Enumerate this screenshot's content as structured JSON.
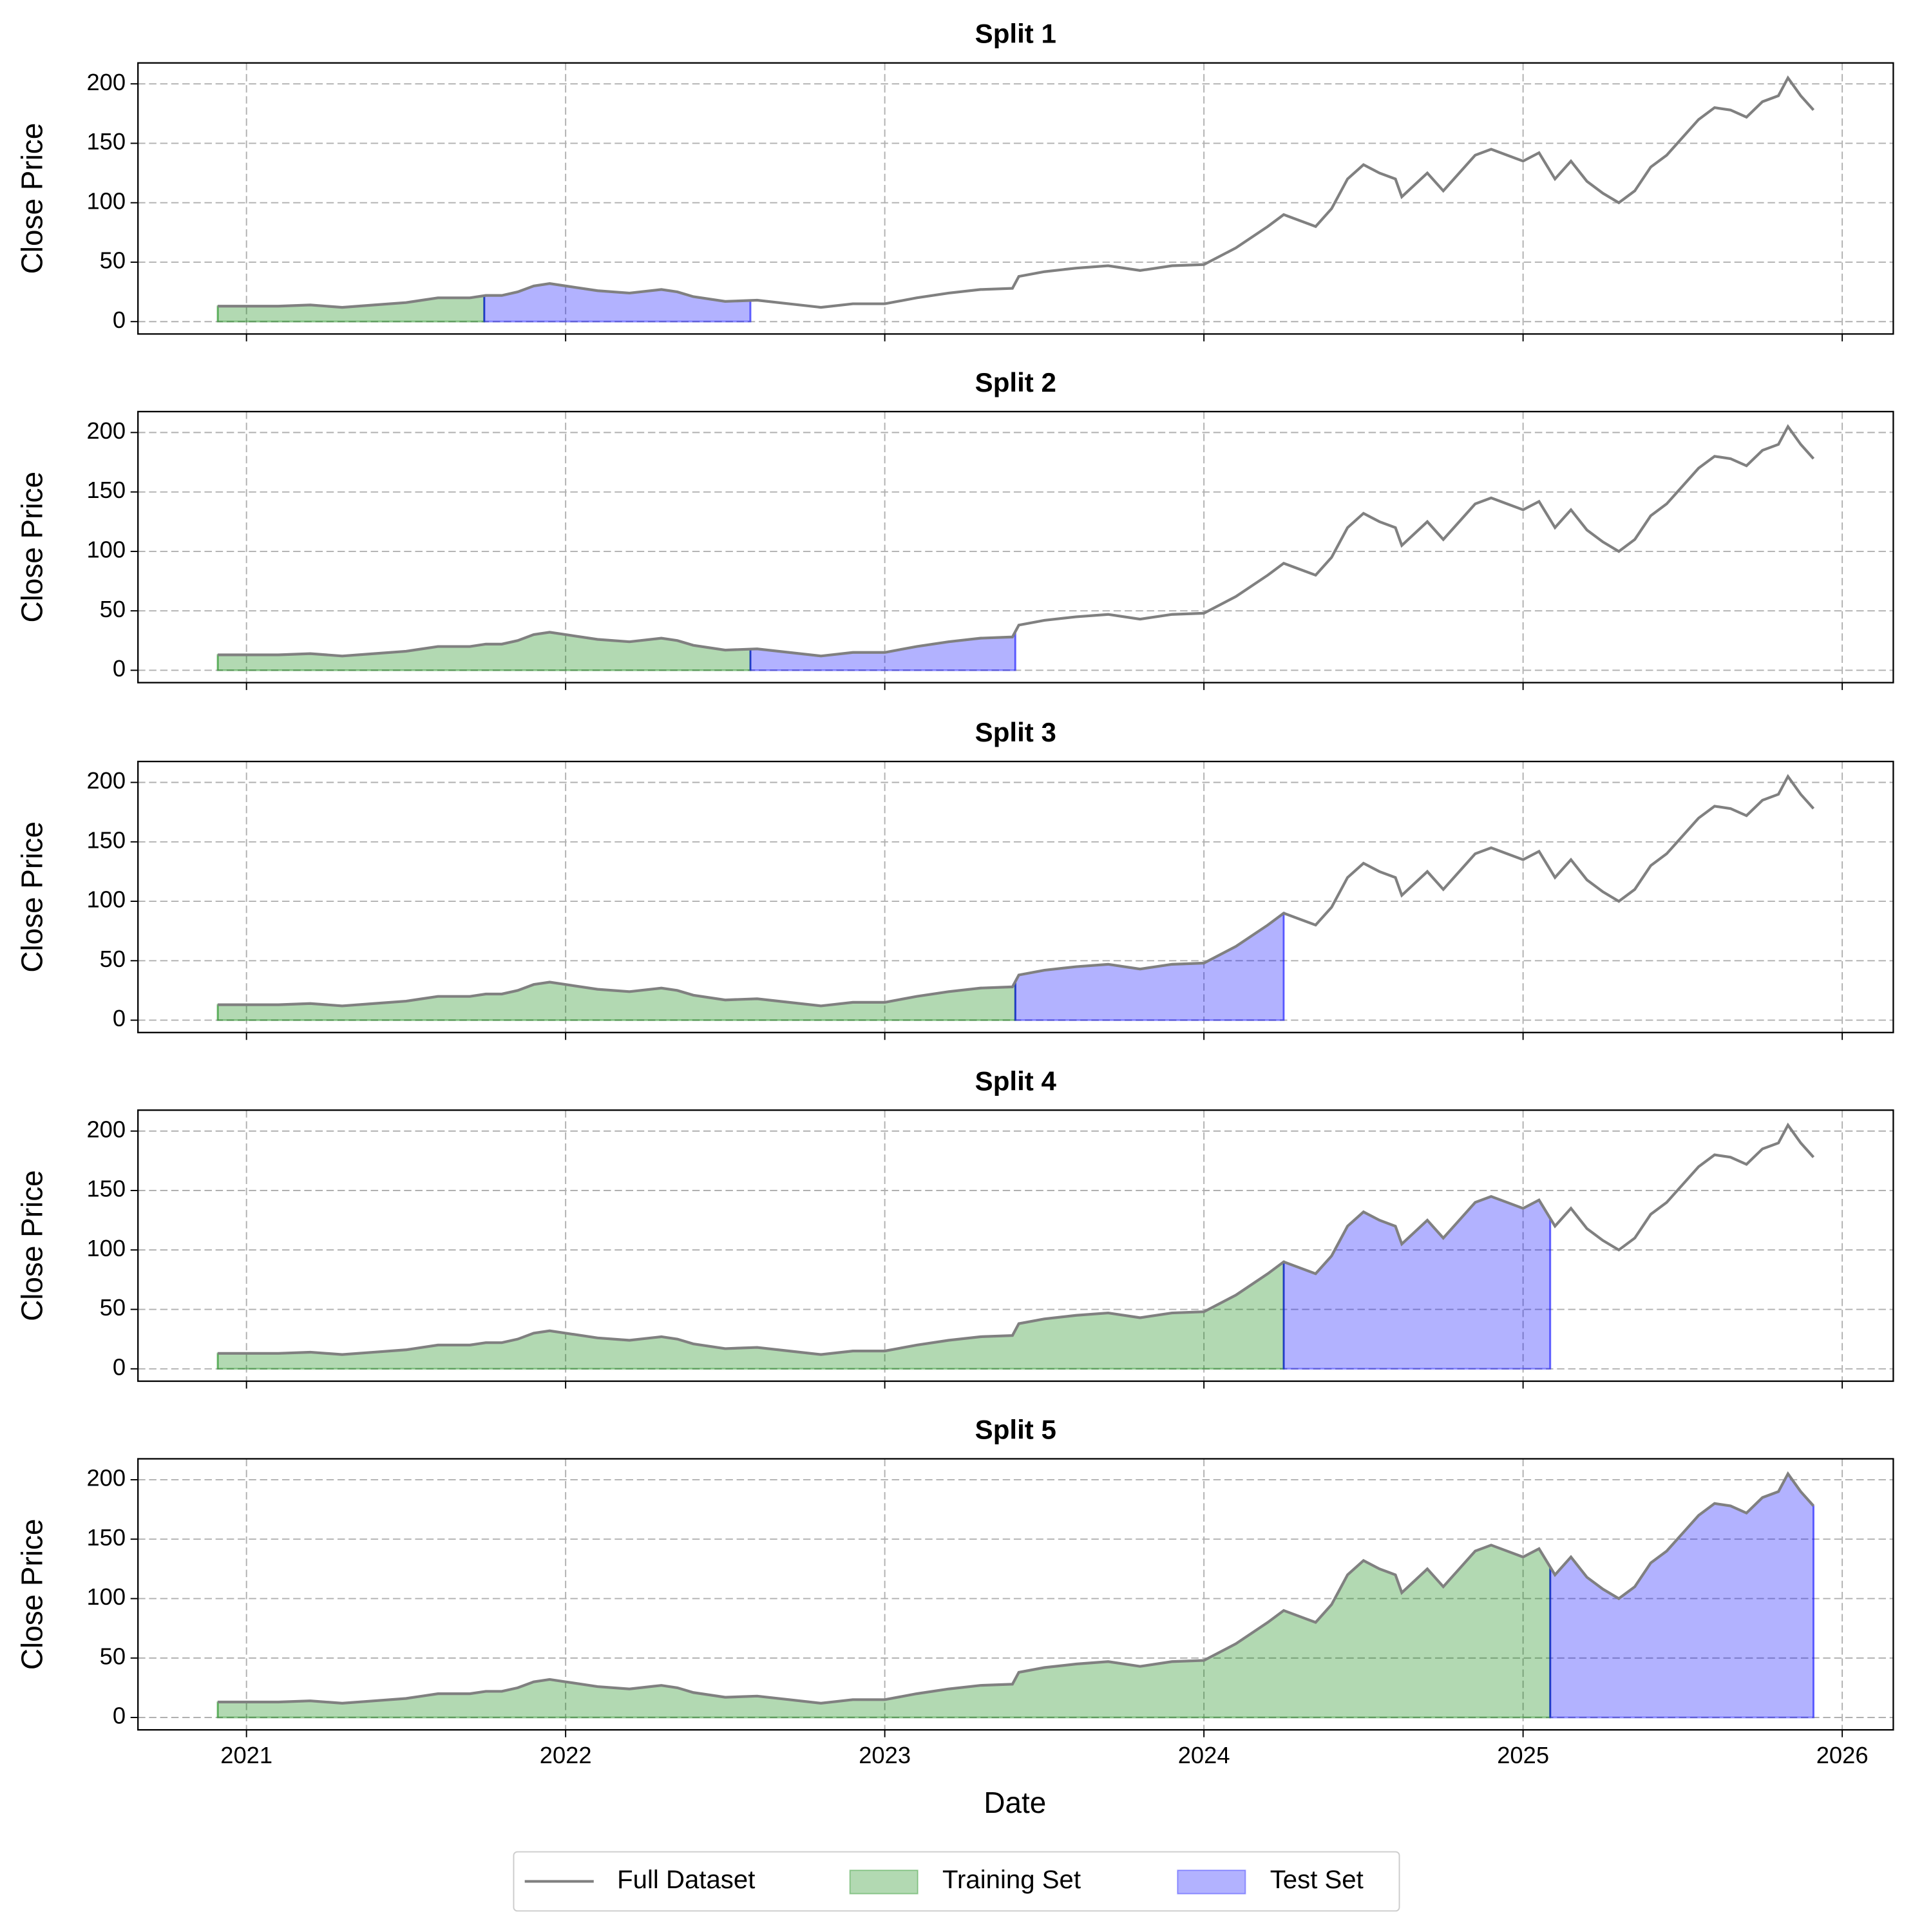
{
  "chart_data": {
    "type": "line",
    "xlabel": "Date",
    "ylabel": "Close Price",
    "x": [
      2020.91,
      2021.0,
      2021.1,
      2021.2,
      2021.3,
      2021.4,
      2021.5,
      2021.55,
      2021.6,
      2021.7,
      2021.75,
      2021.8,
      2021.85,
      2021.9,
      2021.95,
      2022.0,
      2022.1,
      2022.2,
      2022.3,
      2022.35,
      2022.4,
      2022.5,
      2022.6,
      2022.7,
      2022.8,
      2022.9,
      2023.0,
      2023.1,
      2023.2,
      2023.3,
      2023.4,
      2023.42,
      2023.5,
      2023.6,
      2023.7,
      2023.8,
      2023.9,
      2024.0,
      2024.1,
      2024.2,
      2024.25,
      2024.3,
      2024.35,
      2024.4,
      2024.45,
      2024.5,
      2024.55,
      2024.6,
      2024.62,
      2024.7,
      2024.75,
      2024.8,
      2024.85,
      2024.9,
      2024.95,
      2025.0,
      2025.05,
      2025.1,
      2025.15,
      2025.2,
      2025.25,
      2025.3,
      2025.35,
      2025.4,
      2025.45,
      2025.5,
      2025.55,
      2025.6,
      2025.65,
      2025.7,
      2025.75,
      2025.8,
      2025.83,
      2025.87,
      2025.91
    ],
    "series": [
      {
        "name": "Full Dataset",
        "color": "#808080",
        "values": [
          13,
          13,
          13,
          14,
          12,
          14,
          16,
          18,
          20,
          20,
          22,
          22,
          25,
          30,
          32,
          30,
          26,
          24,
          27,
          25,
          21,
          17,
          18,
          15,
          12,
          15,
          15,
          20,
          24,
          27,
          28,
          38,
          42,
          45,
          47,
          43,
          47,
          48,
          62,
          80,
          90,
          85,
          80,
          95,
          120,
          132,
          125,
          120,
          105,
          125,
          110,
          125,
          140,
          145,
          140,
          135,
          142,
          120,
          135,
          118,
          108,
          100,
          110,
          130,
          140,
          155,
          170,
          180,
          178,
          172,
          185,
          190,
          205,
          190,
          178
        ]
      }
    ],
    "fills": [
      {
        "name": "Training Set",
        "color": "#008000"
      },
      {
        "name": "Test Set",
        "color": "#0000ff"
      }
    ],
    "splits": [
      {
        "title": "Split 1",
        "train": [
          2020.91,
          2021.745
        ],
        "test": [
          2021.745,
          2022.579
        ]
      },
      {
        "title": "Split 2",
        "train": [
          2020.91,
          2022.579
        ],
        "test": [
          2022.579,
          2023.409
        ]
      },
      {
        "title": "Split 3",
        "train": [
          2020.91,
          2023.409
        ],
        "test": [
          2023.409,
          2024.25
        ]
      },
      {
        "title": "Split 4",
        "train": [
          2020.91,
          2024.25
        ],
        "test": [
          2024.25,
          2025.085
        ]
      },
      {
        "title": "Split 5",
        "train": [
          2020.91,
          2025.085
        ],
        "test": [
          2025.085,
          2025.91
        ]
      }
    ],
    "xlim": [
      2020.66,
      2026.16
    ],
    "xticks": [
      2021,
      2022,
      2023,
      2024,
      2025,
      2026
    ],
    "ylim": [
      -10.4,
      217.6
    ],
    "yticks": [
      0,
      50,
      100,
      150,
      200
    ],
    "grid": true,
    "legend": "lower center"
  }
}
